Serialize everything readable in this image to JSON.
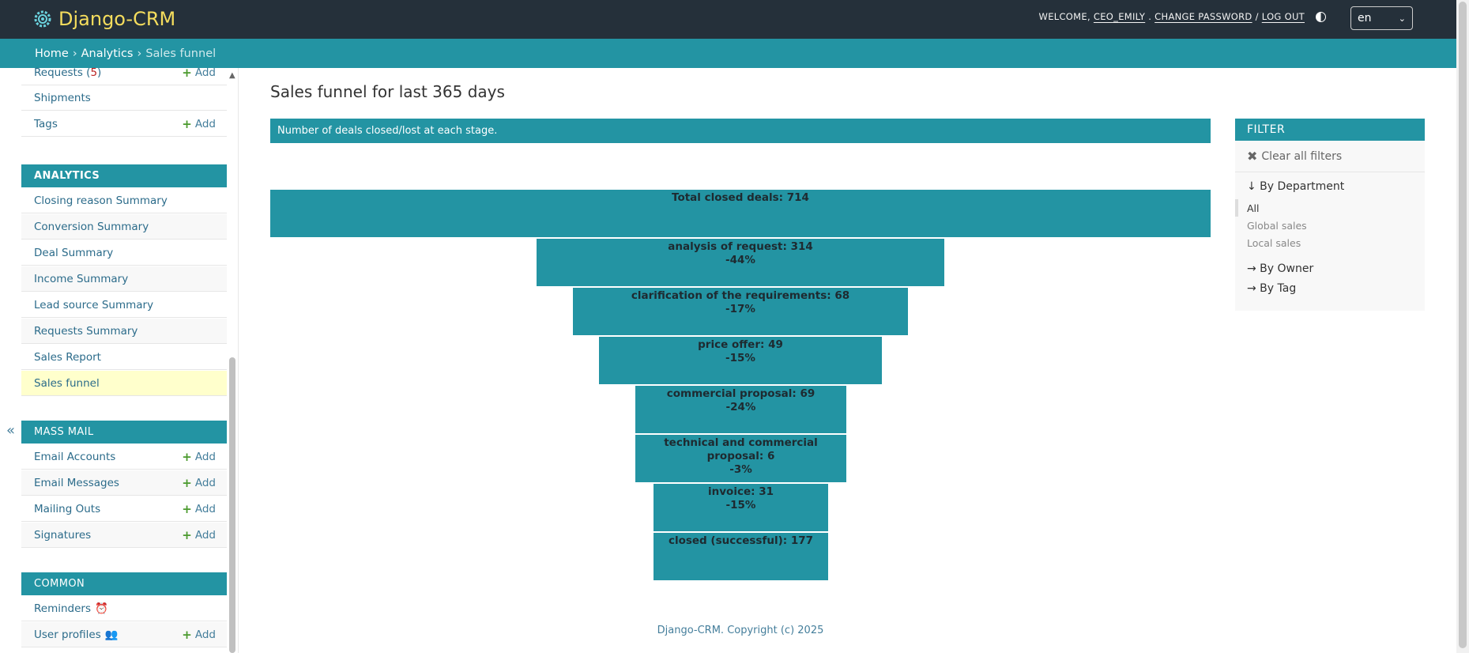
{
  "header": {
    "brand": "Django-CRM",
    "welcome": "WELCOME,",
    "username": "CEO_EMILY",
    "change_password": "CHANGE PASSWORD",
    "slash": "/",
    "logout": "LOG OUT",
    "language": "en"
  },
  "breadcrumbs": {
    "home": "Home",
    "analytics": "Analytics",
    "current": "Sales funnel",
    "sep": "›"
  },
  "sidebar": {
    "collapse": "«",
    "top_rows": [
      {
        "label": "Requests",
        "count": "5",
        "add": "Add"
      },
      {
        "label": "Shipments"
      },
      {
        "label": "Tags",
        "add": "Add"
      }
    ],
    "analytics": {
      "caption": "ANALYTICS",
      "items": [
        "Closing reason Summary",
        "Conversion Summary",
        "Deal Summary",
        "Income Summary",
        "Lead source Summary",
        "Requests Summary",
        "Sales Report",
        "Sales funnel"
      ]
    },
    "massmail": {
      "caption": "MASS MAIL",
      "items": [
        {
          "label": "Email Accounts",
          "add": "Add"
        },
        {
          "label": "Email Messages",
          "add": "Add"
        },
        {
          "label": "Mailing Outs",
          "add": "Add"
        },
        {
          "label": "Signatures",
          "add": "Add"
        }
      ]
    },
    "common": {
      "caption": "COMMON",
      "items": [
        {
          "label": "Reminders",
          "icon": "alarm-clock-icon"
        },
        {
          "label": "User profiles",
          "icon": "users-icon",
          "add": "Add"
        }
      ]
    }
  },
  "main": {
    "title": "Sales funnel for last 365 days",
    "caption": "Number of deals closed/lost at each stage.",
    "footer": "Django-CRM. Copyright (c) 2025"
  },
  "chart_data": {
    "type": "bar",
    "orientation": "funnel",
    "categories": [
      "Total closed deals",
      "analysis of request",
      "clarification of the requirements",
      "price offer",
      "commercial proposal",
      "technical and commercial proposal",
      "invoice",
      "closed (successful)"
    ],
    "labels": [
      "Total closed deals: 714",
      "analysis of request: 314",
      "clarification of the requirements: 68",
      "price offer: 49",
      "commercial proposal: 69",
      "technical and commercial proposal: 6",
      "invoice: 31",
      "closed (successful): 177"
    ],
    "values": [
      714,
      314,
      68,
      49,
      69,
      6,
      31,
      177
    ],
    "percent_labels": [
      "",
      "-44%",
      "-17%",
      "-15%",
      "-24%",
      "-3%",
      "-15%",
      ""
    ],
    "width_fraction": [
      1.0,
      0.434,
      0.356,
      0.301,
      0.224,
      0.224,
      0.186,
      0.186
    ],
    "color": "#2394a3"
  },
  "filter": {
    "title": "FILTER",
    "clear": "Clear all filters",
    "by_department": "↓ By Department",
    "department_options": [
      "All",
      "Global sales",
      "Local sales"
    ],
    "by_owner": "→ By Owner",
    "by_tag": "→ By Tag"
  },
  "colors": {
    "header": "#25303a",
    "accent": "#2394a3",
    "brand": "#f5dd5d",
    "active_row": "#ffffcc"
  }
}
